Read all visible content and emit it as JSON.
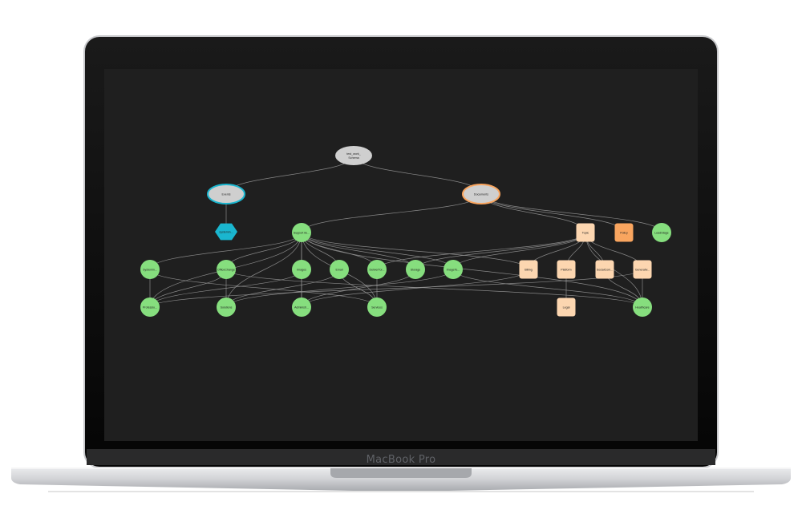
{
  "device": {
    "brand_label": "MacBook Pro"
  },
  "colors": {
    "screen": "#1f1f1f",
    "edge": "#9a9a9a",
    "root": "#cfcfcf",
    "green": "#86de7e",
    "cyan": "#1ab6cf",
    "peach": "#fcd6b0",
    "orange": "#f9a55f"
  },
  "graph": {
    "nodes": [
      {
        "id": "root",
        "label": "test_work_ Schema",
        "shape": "ellipse",
        "color": "root"
      },
      {
        "id": "events",
        "label": "Events",
        "shape": "ellipse",
        "color": "root",
        "stroke": "cyan"
      },
      {
        "id": "documents",
        "label": "Documents",
        "shape": "ellipse",
        "color": "root",
        "stroke": "orange"
      },
      {
        "id": "ev_child",
        "label": "systemin...",
        "shape": "hexagon",
        "color": "cyan"
      },
      {
        "id": "support",
        "label": "Support ite...",
        "shape": "circle",
        "color": "green"
      },
      {
        "id": "topic",
        "label": "Topic",
        "shape": "square",
        "color": "peach"
      },
      {
        "id": "policy",
        "label": "Policy",
        "shape": "square",
        "color": "orange"
      },
      {
        "id": "lead",
        "label": "LeadStage",
        "shape": "circle",
        "color": "green"
      },
      {
        "id": "c1",
        "label": "Systemin...",
        "shape": "circle",
        "color": "green"
      },
      {
        "id": "c2",
        "label": "OfficeChange",
        "shape": "circle",
        "color": "green"
      },
      {
        "id": "c3",
        "label": "Images",
        "shape": "circle",
        "color": "green"
      },
      {
        "id": "c4",
        "label": "Email",
        "shape": "circle",
        "color": "green"
      },
      {
        "id": "c5",
        "label": "DeliverTor...",
        "shape": "circle",
        "color": "green"
      },
      {
        "id": "c6",
        "label": "Storage",
        "shape": "circle",
        "color": "green"
      },
      {
        "id": "c7",
        "label": "ImageTe...",
        "shape": "circle",
        "color": "green"
      },
      {
        "id": "s1",
        "label": "Billing",
        "shape": "square",
        "color": "peach"
      },
      {
        "id": "s2",
        "label": "Platform",
        "shape": "square",
        "color": "peach"
      },
      {
        "id": "s3",
        "label": "SocialCom...",
        "shape": "square",
        "color": "peach"
      },
      {
        "id": "s4",
        "label": "Generativ...",
        "shape": "square",
        "color": "peach"
      },
      {
        "id": "b1",
        "label": "Professio...",
        "shape": "circle",
        "color": "green"
      },
      {
        "id": "b2",
        "label": "Solutions",
        "shape": "circle",
        "color": "green"
      },
      {
        "id": "b3",
        "label": "Administr...",
        "shape": "circle",
        "color": "green"
      },
      {
        "id": "b4",
        "label": "Services",
        "shape": "circle",
        "color": "green"
      },
      {
        "id": "legal",
        "label": "Legal",
        "shape": "square",
        "color": "peach"
      },
      {
        "id": "b5",
        "label": "Healthcare",
        "shape": "circle",
        "color": "green"
      }
    ],
    "edges": [
      [
        "root",
        "events"
      ],
      [
        "root",
        "documents"
      ],
      [
        "events",
        "ev_child"
      ],
      [
        "documents",
        "support"
      ],
      [
        "documents",
        "topic"
      ],
      [
        "documents",
        "policy"
      ],
      [
        "documents",
        "lead"
      ],
      [
        "support",
        "c1"
      ],
      [
        "support",
        "c2"
      ],
      [
        "support",
        "c3"
      ],
      [
        "support",
        "c4"
      ],
      [
        "support",
        "c5"
      ],
      [
        "support",
        "c6"
      ],
      [
        "support",
        "c7"
      ],
      [
        "support",
        "s1"
      ],
      [
        "support",
        "b1"
      ],
      [
        "support",
        "b2"
      ],
      [
        "support",
        "b3"
      ],
      [
        "support",
        "b4"
      ],
      [
        "support",
        "b5"
      ],
      [
        "topic",
        "s1"
      ],
      [
        "topic",
        "s2"
      ],
      [
        "topic",
        "s3"
      ],
      [
        "topic",
        "s4"
      ],
      [
        "topic",
        "c5"
      ],
      [
        "topic",
        "c6"
      ],
      [
        "topic",
        "c7"
      ],
      [
        "topic",
        "b5"
      ],
      [
        "c1",
        "b1"
      ],
      [
        "c1",
        "b4"
      ],
      [
        "c2",
        "b1"
      ],
      [
        "c2",
        "b2"
      ],
      [
        "c2",
        "b5"
      ],
      [
        "c3",
        "b3"
      ],
      [
        "c3",
        "b1"
      ],
      [
        "c4",
        "b4"
      ],
      [
        "c4",
        "b2"
      ],
      [
        "c5",
        "b4"
      ],
      [
        "c6",
        "b3"
      ],
      [
        "c7",
        "b2"
      ],
      [
        "c7",
        "b5"
      ],
      [
        "s1",
        "b3"
      ],
      [
        "s2",
        "legal"
      ],
      [
        "s3",
        "b5"
      ],
      [
        "s4",
        "b5"
      ],
      [
        "s4",
        "b1"
      ]
    ]
  }
}
